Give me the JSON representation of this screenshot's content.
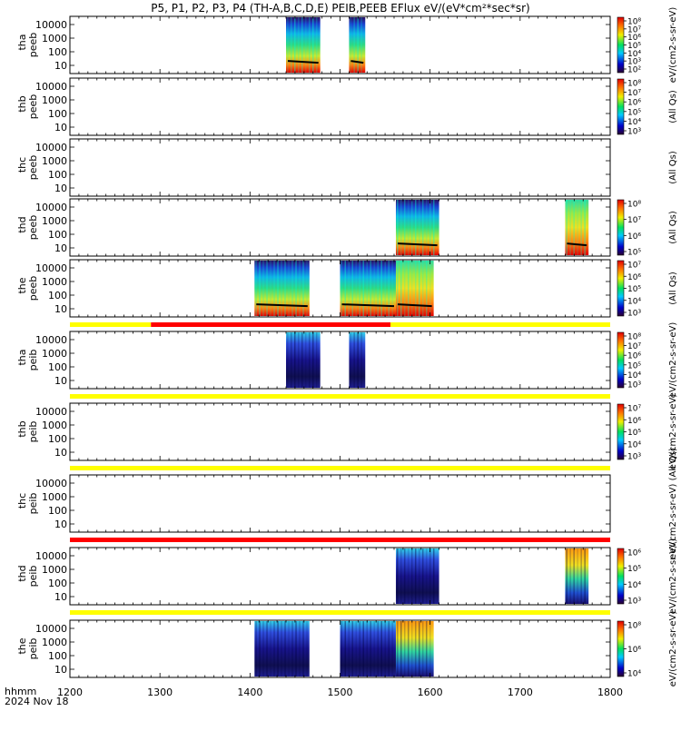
{
  "chart_data": {
    "type": "heatmap",
    "title": "P5, P1, P2, P3, P4 (TH-A,B,C,D,E) PEIB,PEEB EFlux eV/(eV*cm²*sec*sr)",
    "x_axis": {
      "range": [
        1200,
        1800
      ],
      "ticks": [
        "1200",
        "1300",
        "1400",
        "1500",
        "1600",
        "1700",
        "1800"
      ],
      "label_line1": "hhmm",
      "label_line2": "2024 Nov 18"
    },
    "panels": [
      {
        "probe": "tha",
        "species": "peeb",
        "yticks": [
          "10000",
          "1000",
          "100",
          "10"
        ],
        "data_blocks": [
          [
            1440,
            1478
          ],
          [
            1510,
            1528
          ]
        ],
        "colorbar": {
          "show": true,
          "ticks": [
            "10^8",
            "10^7",
            "10^6",
            "10^5",
            "10^4",
            "10^3",
            "10^2"
          ],
          "label": "eV/(cm2-s-sr-eV)"
        },
        "status_bar": null
      },
      {
        "probe": "thb",
        "species": "peeb",
        "yticks": [
          "10000",
          "1000",
          "100",
          "10"
        ],
        "data_blocks": [],
        "colorbar": {
          "show": true,
          "ticks": [
            "10^8",
            "10^7",
            "10^6",
            "10^5",
            "10^4",
            "10^3"
          ],
          "label": "(All Qs)"
        },
        "status_bar": null
      },
      {
        "probe": "thc",
        "species": "peeb",
        "yticks": [
          "10000",
          "1000",
          "100",
          "10"
        ],
        "data_blocks": [],
        "colorbar": {
          "show": false,
          "ticks": [],
          "label": "(All Qs)"
        },
        "status_bar": null
      },
      {
        "probe": "thd",
        "species": "peeb",
        "yticks": [
          "10000",
          "1000",
          "100",
          "10"
        ],
        "data_blocks": [
          [
            1562,
            1610
          ],
          [
            1750,
            1776
          ]
        ],
        "colorbar": {
          "show": true,
          "ticks": [
            "10^8",
            "10^7",
            "10^6",
            "10^5"
          ],
          "label": "(All Qs)"
        },
        "status_bar": null
      },
      {
        "probe": "the",
        "species": "peeb",
        "yticks": [
          "10000",
          "1000",
          "100",
          "10"
        ],
        "data_blocks": [
          [
            1405,
            1466
          ],
          [
            1500,
            1562
          ],
          [
            1562,
            1604
          ]
        ],
        "colorbar": {
          "show": true,
          "ticks": [
            "10^7",
            "10^6",
            "10^5",
            "10^4",
            "10^3"
          ],
          "label": "(All Qs)"
        },
        "status_bar": {
          "segments": [
            {
              "from": 1200,
              "to": 1290,
              "color": "#ffff00"
            },
            {
              "from": 1290,
              "to": 1556,
              "color": "#ff0000"
            },
            {
              "from": 1556,
              "to": 1800,
              "color": "#ffff00"
            }
          ]
        }
      },
      {
        "probe": "tha",
        "species": "peib",
        "yticks": [
          "10000",
          "1000",
          "100",
          "10"
        ],
        "data_blocks": [
          [
            1440,
            1478
          ],
          [
            1510,
            1528
          ]
        ],
        "colorbar": {
          "show": true,
          "ticks": [
            "10^8",
            "10^7",
            "10^6",
            "10^5",
            "10^4",
            "10^3"
          ],
          "label": "eV/(cm2-s-sr-eV)"
        },
        "status_bar": {
          "segments": [
            {
              "from": 1200,
              "to": 1800,
              "color": "#ffff00"
            }
          ]
        }
      },
      {
        "probe": "thb",
        "species": "peib",
        "yticks": [
          "10000",
          "1000",
          "100",
          "10"
        ],
        "data_blocks": [],
        "colorbar": {
          "show": true,
          "ticks": [
            "10^7",
            "10^6",
            "10^5",
            "10^4",
            "10^3"
          ],
          "label": "eV/(cm2-s-sr-eV)"
        },
        "status_bar": {
          "segments": [
            {
              "from": 1200,
              "to": 1800,
              "color": "#ffff00"
            }
          ]
        }
      },
      {
        "probe": "thc",
        "species": "peib",
        "yticks": [
          "10000",
          "1000",
          "100",
          "10"
        ],
        "data_blocks": [],
        "colorbar": {
          "show": false,
          "ticks": [],
          "label": "eV/(cm2-s-sr-eV) (All Qs)"
        },
        "status_bar": {
          "segments": [
            {
              "from": 1200,
              "to": 1800,
              "color": "#ff0000"
            }
          ]
        }
      },
      {
        "probe": "thd",
        "species": "peib",
        "yticks": [
          "10000",
          "1000",
          "100",
          "10"
        ],
        "data_blocks": [
          [
            1562,
            1610
          ],
          [
            1750,
            1776
          ]
        ],
        "colorbar": {
          "show": true,
          "ticks": [
            "10^6",
            "10^5",
            "10^4",
            "10^3"
          ],
          "label": "eV/(cm2-s-sr-eV)"
        },
        "status_bar": {
          "segments": [
            {
              "from": 1200,
              "to": 1800,
              "color": "#ffff00"
            }
          ]
        }
      },
      {
        "probe": "the",
        "species": "peib",
        "yticks": [
          "10000",
          "1000",
          "100",
          "10"
        ],
        "data_blocks": [
          [
            1405,
            1466
          ],
          [
            1500,
            1562
          ],
          [
            1562,
            1604
          ]
        ],
        "colorbar": {
          "show": true,
          "ticks": [
            "10^8",
            "10^6",
            "10^4"
          ],
          "label": "eV/(cm2-s-sr-eV)"
        },
        "status_bar": null
      }
    ]
  }
}
